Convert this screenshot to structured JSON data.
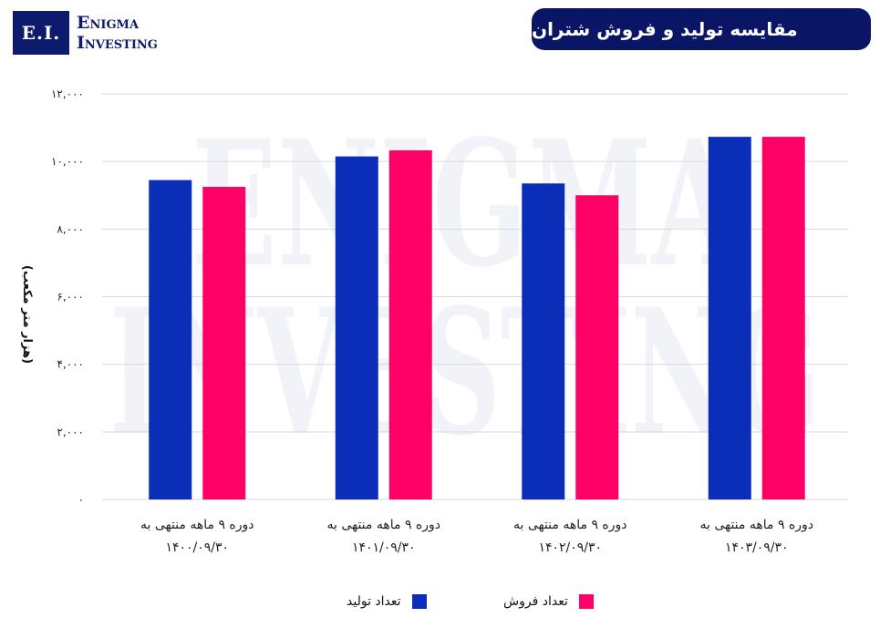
{
  "logo": {
    "mark": "E.I.",
    "line1": "Enigma",
    "line2": "Investing"
  },
  "header": {
    "title": "مقایسه تولید و فروش شتران"
  },
  "watermark": {
    "line1": "ENIGMA",
    "line2": "INVESTING"
  },
  "chart_data": {
    "type": "bar",
    "title": "مقایسه تولید و فروش شتران",
    "ylabel": "(هزار متر مکعب)",
    "xlabel": "",
    "ylim": [
      0,
      12000
    ],
    "yticks": [
      0,
      2000,
      4000,
      6000,
      8000,
      10000,
      12000
    ],
    "ytick_labels": [
      "۰",
      "۲,۰۰۰",
      "۴,۰۰۰",
      "۶,۰۰۰",
      "۸,۰۰۰",
      "۱۰,۰۰۰",
      "۱۲,۰۰۰"
    ],
    "categories": [
      {
        "line1": "دوره ۹ ماهه منتهی به",
        "line2": "۱۴۰۰/۰۹/۳۰"
      },
      {
        "line1": "دوره ۹ ماهه منتهی به",
        "line2": "۱۴۰۱/۰۹/۳۰"
      },
      {
        "line1": "دوره ۹ ماهه منتهی به",
        "line2": "۱۴۰۲/۰۹/۳۰"
      },
      {
        "line1": "دوره ۹ ماهه منتهی به",
        "line2": "۱۴۰۳/۰۹/۳۰"
      }
    ],
    "series": [
      {
        "name": "تعداد تولید",
        "color": "#0a2eb8",
        "values": [
          9450,
          10150,
          9350,
          10730
        ]
      },
      {
        "name": "تعداد فروش",
        "color": "#ff0066",
        "values": [
          9250,
          10330,
          9000,
          10730
        ]
      }
    ],
    "grid": true,
    "legend_position": "bottom-center",
    "gridline_color": "#d9d9d9"
  }
}
